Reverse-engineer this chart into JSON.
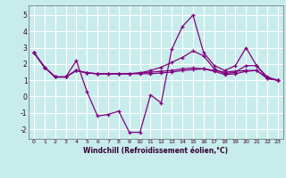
{
  "xlabel": "Windchill (Refroidissement éolien,°C)",
  "background_color": "#c8ecec",
  "line_color": "#800080",
  "xlim": [
    -0.5,
    23.5
  ],
  "ylim": [
    -2.6,
    5.6
  ],
  "yticks": [
    -2,
    -1,
    0,
    1,
    2,
    3,
    4,
    5
  ],
  "xticks": [
    0,
    1,
    2,
    3,
    4,
    5,
    6,
    7,
    8,
    9,
    10,
    11,
    12,
    13,
    14,
    15,
    16,
    17,
    18,
    19,
    20,
    21,
    22,
    23
  ],
  "series": [
    [
      2.7,
      1.8,
      1.2,
      1.2,
      2.2,
      0.3,
      -1.2,
      -1.1,
      -0.9,
      -2.2,
      -2.2,
      0.1,
      -0.4,
      2.9,
      4.3,
      5.0,
      2.7,
      1.9,
      1.6,
      1.9,
      3.0,
      1.9,
      1.1,
      1.0
    ],
    [
      2.7,
      1.8,
      1.2,
      1.2,
      1.6,
      1.45,
      1.4,
      1.4,
      1.4,
      1.4,
      1.4,
      1.4,
      1.45,
      1.5,
      1.6,
      1.65,
      1.7,
      1.6,
      1.5,
      1.55,
      1.6,
      1.6,
      1.15,
      1.0
    ],
    [
      2.7,
      1.8,
      1.2,
      1.2,
      1.6,
      1.45,
      1.4,
      1.4,
      1.4,
      1.4,
      1.45,
      1.6,
      1.8,
      2.1,
      2.4,
      2.8,
      2.5,
      1.7,
      1.4,
      1.5,
      1.9,
      1.9,
      1.2,
      1.0
    ],
    [
      2.7,
      1.8,
      1.2,
      1.2,
      1.6,
      1.45,
      1.4,
      1.4,
      1.4,
      1.4,
      1.45,
      1.5,
      1.55,
      1.6,
      1.7,
      1.75,
      1.7,
      1.55,
      1.35,
      1.4,
      1.55,
      1.6,
      1.1,
      1.0
    ]
  ]
}
